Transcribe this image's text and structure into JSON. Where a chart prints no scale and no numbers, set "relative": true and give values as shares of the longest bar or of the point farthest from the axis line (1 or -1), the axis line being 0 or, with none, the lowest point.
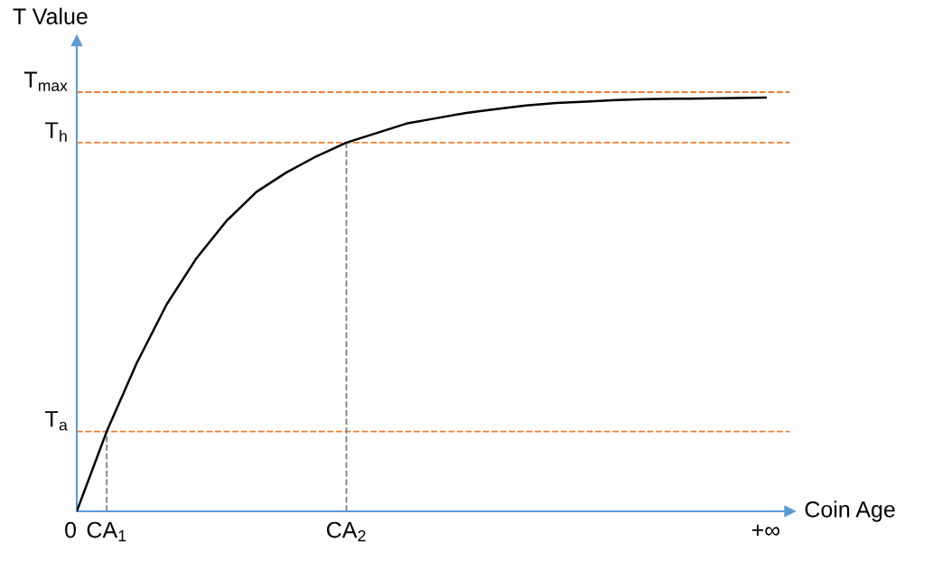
{
  "chart_data": {
    "type": "line",
    "relative": true,
    "xlabel": "Coin Age",
    "ylabel": "T Value",
    "categories": [
      "0",
      "CA$_{1}$",
      null,
      null,
      null,
      null,
      null,
      null,
      null,
      "CA$_{2}$",
      null,
      null,
      null,
      null,
      null,
      null,
      null,
      null,
      null,
      null,
      null,
      null,
      null,
      "+∞"
    ],
    "series": [
      {
        "color": "#000000",
        "values": [
          0,
          0.193,
          0.358,
          0.5,
          0.612,
          0.702,
          0.772,
          0.819,
          0.858,
          0.891,
          0.914,
          0.937,
          0.95,
          0.963,
          0.972,
          0.981,
          0.987,
          0.99,
          0.994,
          0.996,
          0.997,
          0.998,
          0.999,
          1
        ]
      }
    ],
    "ref_lines": [
      {
        "axis": "y",
        "value": 1.013,
        "label": "T$_{max}$",
        "color": "#ed7d31",
        "line_style": "dashed"
      },
      {
        "axis": "y",
        "value": 0.891,
        "label": "T$_{h}$",
        "color": "#ed7d31",
        "line_style": "dashed"
      },
      {
        "axis": "y",
        "value": 0.193,
        "label": "T$_{a}$",
        "color": "#ed7d31",
        "line_style": "dashed"
      },
      {
        "axis": "x",
        "value": "CA$_{1}$",
        "color": "#7f7f7f",
        "line_style": "dashed"
      },
      {
        "axis": "x",
        "value": "CA$_{2}$",
        "color": "#7f7f7f",
        "line_style": "dashed"
      }
    ],
    "grid": false,
    "legend": false,
    "marker": "none",
    "line_style": "solid"
  }
}
